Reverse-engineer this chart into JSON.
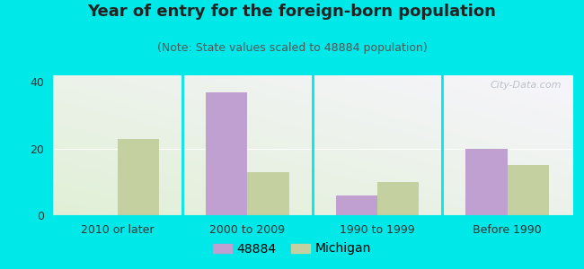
{
  "title": "Year of entry for the foreign-born population",
  "subtitle": "(Note: State values scaled to 48884 population)",
  "categories": [
    "2010 or later",
    "2000 to 2009",
    "1990 to 1999",
    "Before 1990"
  ],
  "values_48884": [
    0,
    37,
    6,
    20
  ],
  "values_michigan": [
    23,
    13,
    10,
    15
  ],
  "bar_color_48884": "#c0a0d0",
  "bar_color_michigan": "#c5d0a0",
  "background_outer": "#00e8e8",
  "ylim": [
    0,
    42
  ],
  "yticks": [
    0,
    20,
    40
  ],
  "legend_label_48884": "48884",
  "legend_label_michigan": "Michigan",
  "bar_width": 0.32,
  "title_fontsize": 13,
  "subtitle_fontsize": 9,
  "tick_fontsize": 9,
  "legend_fontsize": 10
}
